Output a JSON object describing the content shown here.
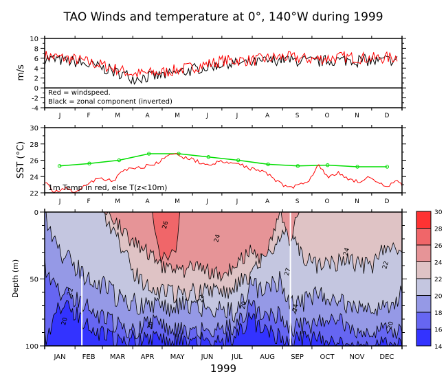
{
  "title": "TAO Winds and temperature at 0°, 140°W during 1999",
  "chart_data": [
    {
      "id": "winds",
      "type": "line",
      "ylabel": "m/s",
      "ylim": [
        -4,
        10
      ],
      "yticks": [
        -4,
        -2,
        0,
        2,
        4,
        6,
        8,
        10
      ],
      "xlim_days": [
        0,
        365
      ],
      "month_labels": [
        "J",
        "F",
        "M",
        "A",
        "M",
        "J",
        "J",
        "A",
        "S",
        "O",
        "N",
        "D"
      ],
      "annotations": [
        "Red = windspeed.",
        "Black = zonal component (inverted)"
      ],
      "series": [
        {
          "name": "windspeed",
          "color": "#ff0000",
          "monthly_anchor_values": [
            6.5,
            5.8,
            4.5,
            2.8,
            3.2,
            4.2,
            5.5,
            5.6,
            6.3,
            5.8,
            6.2,
            6.0,
            6.2
          ],
          "note": "daily noisy series approx. ranging 1–9.5 m/s"
        },
        {
          "name": "zonal component (inverted)",
          "color": "#000000",
          "monthly_anchor_values": [
            6.3,
            5.6,
            4.3,
            2.4,
            2.9,
            4.0,
            5.3,
            5.4,
            6.1,
            5.6,
            6.0,
            5.8,
            6.0
          ],
          "note": "closely tracks windspeed, slightly lower"
        }
      ]
    },
    {
      "id": "sst",
      "type": "line",
      "ylabel": "SST (°C)",
      "ylim": [
        22,
        30
      ],
      "yticks": [
        22,
        24,
        26,
        28,
        30
      ],
      "month_labels": [
        "J",
        "F",
        "M",
        "A",
        "M",
        "J",
        "J",
        "A",
        "S",
        "O",
        "N",
        "D"
      ],
      "annotations": [
        "1m Temp in red, else T(z<10m)"
      ],
      "series": [
        {
          "name": "climatology",
          "color": "#00dd00",
          "markers": true,
          "x_month_mid": [
            0.5,
            1.5,
            2.5,
            3.5,
            4.5,
            5.5,
            6.5,
            7.5,
            8.5,
            9.5,
            10.5,
            11.5
          ],
          "values": [
            25.3,
            25.6,
            26.0,
            26.8,
            26.8,
            26.4,
            26.0,
            25.5,
            25.3,
            25.4,
            25.2,
            25.2
          ]
        },
        {
          "name": "1m temperature",
          "color": "#ff0000",
          "x_days": [
            0,
            10,
            20,
            30,
            40,
            50,
            60,
            70,
            80,
            90,
            100,
            110,
            120,
            130,
            140,
            150,
            160,
            170,
            180,
            190,
            200,
            210,
            220,
            230,
            240,
            250,
            260,
            270,
            280,
            290,
            300,
            310,
            320,
            330,
            340,
            350,
            360,
            365
          ],
          "values": [
            23.4,
            22.0,
            22.6,
            22.2,
            22.8,
            23.5,
            23.8,
            23.3,
            24.8,
            25.0,
            25.2,
            25.4,
            26.0,
            26.8,
            26.4,
            26.2,
            25.6,
            25.5,
            25.8,
            25.6,
            25.5,
            25.0,
            24.8,
            24.2,
            23.2,
            22.6,
            23.0,
            23.6,
            25.5,
            23.8,
            24.5,
            23.7,
            23.4,
            23.8,
            23.2,
            22.7,
            23.6,
            22.8
          ]
        }
      ]
    },
    {
      "id": "depth",
      "type": "heatmap",
      "ylabel": "Depth (m)",
      "xlabel": "1999",
      "ylim": [
        100,
        0
      ],
      "yticks": [
        0,
        50,
        100
      ],
      "month_labels": [
        "JAN",
        "FEB",
        "MAR",
        "APR",
        "MAY",
        "JUN",
        "JUL",
        "AUG",
        "SEP",
        "OCT",
        "NOV",
        "DEC"
      ],
      "contour_labels": [
        "20",
        "22",
        "24",
        "26",
        "27"
      ],
      "levels": [
        14,
        16,
        18,
        20,
        22,
        24,
        26,
        28,
        30
      ],
      "colors": [
        "#3333ff",
        "#6666f2",
        "#9599e6",
        "#c4c6e0",
        "#dfc3c5",
        "#e69497",
        "#f06669",
        "#ff3333"
      ],
      "isotherm_depth_m": {
        "x_days": [
          0,
          15,
          30,
          45,
          60,
          75,
          90,
          105,
          120,
          135,
          150,
          165,
          180,
          195,
          210,
          225,
          240,
          250,
          260,
          275,
          290,
          305,
          320,
          335,
          350,
          365
        ],
        "d24": [
          0,
          0,
          0,
          0,
          0,
          10,
          22,
          30,
          42,
          45,
          42,
          44,
          48,
          40,
          30,
          35,
          0,
          20,
          0,
          0,
          0,
          0,
          0,
          0,
          0,
          0
        ],
        "d22": [
          0,
          0,
          0,
          0,
          0,
          20,
          45,
          55,
          60,
          62,
          60,
          58,
          62,
          55,
          48,
          30,
          20,
          0,
          30,
          40,
          40,
          35,
          40,
          40,
          25,
          30
        ],
        "d20": [
          0,
          30,
          40,
          50,
          55,
          65,
          68,
          70,
          72,
          70,
          70,
          72,
          70,
          75,
          55,
          60,
          50,
          70,
          70,
          62,
          65,
          68,
          70,
          70,
          70,
          60
        ],
        "d18": [
          40,
          60,
          65,
          70,
          80,
          85,
          90,
          82,
          85,
          88,
          90,
          88,
          85,
          85,
          70,
          80,
          75,
          90,
          85,
          85,
          80,
          82,
          90,
          88,
          85,
          90
        ],
        "d16": [
          95,
          70,
          75,
          85,
          92,
          98,
          95,
          95,
          96,
          96,
          98,
          95,
          95,
          92,
          80,
          90,
          92,
          100,
          95,
          95,
          96,
          100,
          100,
          98,
          96,
          100
        ],
        "d26": [
          0,
          0,
          0,
          0,
          0,
          0,
          0,
          0,
          0,
          25,
          0,
          0,
          0,
          0,
          0,
          0,
          0,
          0,
          0,
          0,
          0,
          0,
          0,
          0,
          0,
          0
        ]
      }
    }
  ],
  "colorbar": {
    "tick_labels": [
      "30",
      "28",
      "26",
      "24",
      "22",
      "20",
      "18",
      "16",
      "14"
    ]
  }
}
